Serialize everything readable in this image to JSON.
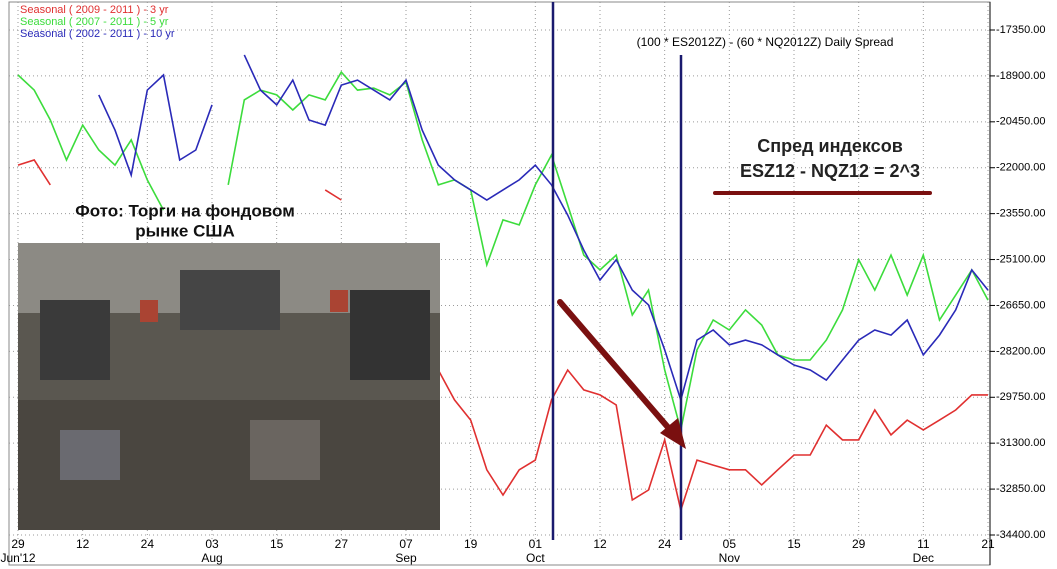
{
  "chart_data": {
    "type": "line",
    "title": "(100 * ES2012Z) - (60 * NQ2012Z) Daily Spread",
    "annotations": [
      "Спред индексов",
      "ESZ12 - NQZ12 = 2^3",
      "Фото: Торги на фондовом",
      "рынке США"
    ],
    "x_ticks": [
      {
        "day": "29",
        "month": "Jun'12"
      },
      {
        "day": "12"
      },
      {
        "day": "24"
      },
      {
        "day": "03",
        "month": "Aug"
      },
      {
        "day": "15"
      },
      {
        "day": "27"
      },
      {
        "day": "07",
        "month": "Sep"
      },
      {
        "day": "19"
      },
      {
        "day": "01",
        "month": "Oct"
      },
      {
        "day": "12"
      },
      {
        "day": "24"
      },
      {
        "day": "05",
        "month": "Nov"
      },
      {
        "day": "15"
      },
      {
        "day": "29"
      },
      {
        "day": "11",
        "month": "Dec"
      },
      {
        "day": "21"
      }
    ],
    "ylim": [
      -34400,
      -17350
    ],
    "yticks": [
      {
        "value": -17350,
        "label": "-17350.00"
      },
      {
        "value": -18900,
        "label": "-18900.00"
      },
      {
        "value": -20450,
        "label": "-20450.00"
      },
      {
        "value": -22000,
        "label": "-22000.00"
      },
      {
        "value": -23550,
        "label": "-23550.00"
      },
      {
        "value": -25100,
        "label": "-25100.00"
      },
      {
        "value": -26650,
        "label": "-26650.00"
      },
      {
        "value": -28200,
        "label": "-28200.00"
      },
      {
        "value": -29750,
        "label": "-29750.00"
      },
      {
        "value": -31300,
        "label": "-31300.00"
      },
      {
        "value": -32850,
        "label": "-32850.00"
      },
      {
        "value": -34400,
        "label": "-34400.00"
      }
    ],
    "grid": true,
    "series": [
      {
        "name": "Seasonal ( 2009 - 2011 ) - 3 yr",
        "color": "#e03030",
        "values": [
          -21910,
          -21740,
          -22580,
          null,
          null,
          null,
          null,
          null,
          null,
          null,
          null,
          null,
          null,
          null,
          null,
          null,
          null,
          null,
          null,
          -22750,
          -23090,
          null,
          null,
          null,
          null,
          null,
          -28830,
          -29840,
          -30520,
          -32200,
          -33050,
          -32200,
          -31870,
          -29840,
          -28830,
          -29500,
          -29670,
          -30010,
          -33220,
          -32880,
          -31190,
          -33560,
          -31870,
          -32040,
          -32200,
          -32200,
          -32710,
          -32200,
          -31700,
          -31700,
          -30690,
          -31190,
          -31190,
          -30180,
          -31020,
          -30520,
          -30850,
          -30520,
          -30180,
          -29670,
          -29670
        ]
      },
      {
        "name": "Seasonal ( 2007 - 2011 ) - 5 yr",
        "color": "#3cdc3c",
        "values": [
          -18870,
          -19380,
          -20390,
          -21740,
          -20560,
          -21400,
          -21910,
          -21060,
          -22410,
          -23430,
          null,
          null,
          null,
          -22580,
          -19710,
          -19380,
          -19540,
          -20050,
          -19540,
          -19710,
          -18770,
          -19380,
          -19310,
          -19540,
          -19110,
          -21060,
          -22580,
          -22410,
          -22750,
          -25280,
          -23760,
          -23930,
          -22580,
          -21570,
          -23260,
          -24950,
          -25450,
          -24950,
          -26970,
          -26130,
          -28830,
          -30850,
          -28150,
          -27140,
          -27480,
          -26800,
          -27310,
          -28320,
          -28490,
          -28490,
          -27820,
          -26800,
          -25110,
          -26130,
          -24950,
          -26300,
          -24950,
          -27140,
          -26300,
          -25450,
          -26470
        ]
      },
      {
        "name": "Seasonal ( 2002 - 2011 ) - 10 yr",
        "color": "#2a2ab8",
        "values": [
          null,
          null,
          null,
          null,
          null,
          -19540,
          -20730,
          -22250,
          -19380,
          -18870,
          -21740,
          -21400,
          -19880,
          null,
          -18190,
          -19380,
          -19880,
          -19040,
          -20390,
          -20560,
          -19210,
          -19040,
          -19380,
          -19710,
          -19040,
          -20730,
          -21910,
          -22410,
          -22750,
          -23090,
          -22750,
          -22410,
          -21910,
          -22580,
          -23600,
          -24780,
          -25790,
          -25110,
          -26130,
          -26630,
          -28150,
          -29840,
          -27820,
          -27480,
          -27980,
          -27820,
          -27980,
          -28320,
          -28660,
          -28830,
          -29170,
          -28490,
          -27820,
          -27480,
          -27650,
          -27140,
          -28320,
          -27650,
          -26800,
          -25450,
          -26130
        ]
      }
    ]
  }
}
